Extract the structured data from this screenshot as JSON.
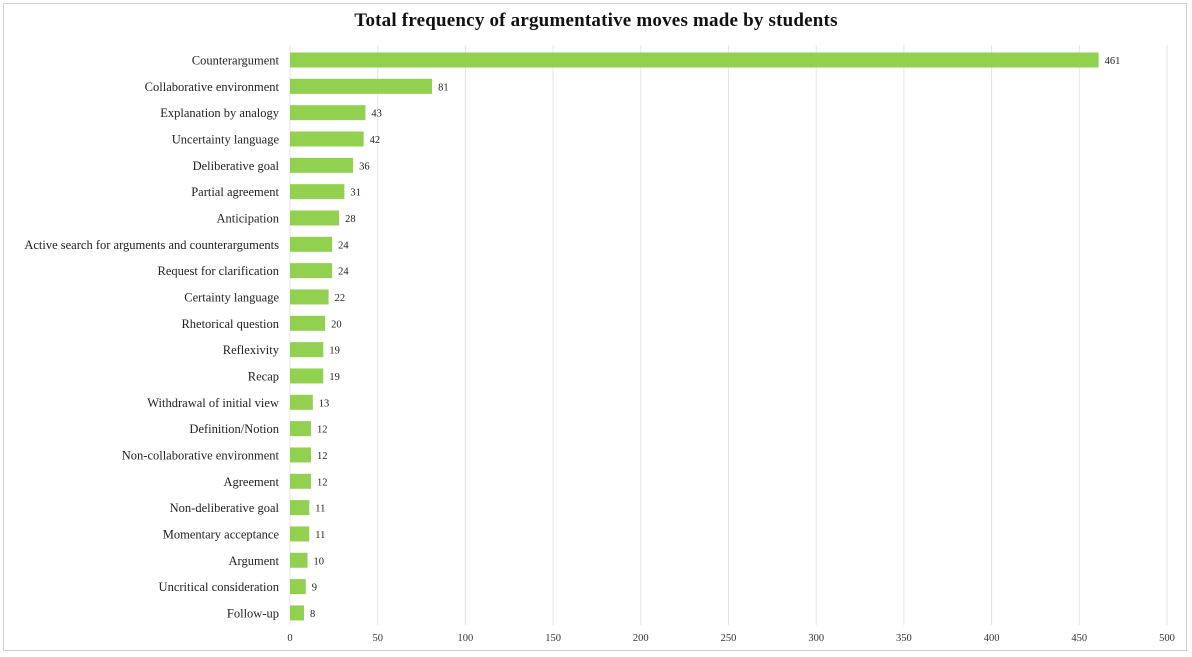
{
  "chart_data": {
    "type": "bar",
    "orientation": "horizontal",
    "title": "Total frequency of  argumentative moves made by students",
    "xlabel": "",
    "ylabel": "",
    "categories": [
      "Counterargument",
      "Collaborative environment",
      "Explanation by analogy",
      "Uncertainty language",
      "Deliberative goal",
      "Partial agreement",
      "Anticipation",
      "Active search for arguments and counterarguments",
      "Request for clarification",
      "Certainty language",
      "Rhetorical question",
      "Reflexivity",
      "Recap",
      "Withdrawal of initial view",
      "Definition/Notion",
      "Non-collaborative environment",
      "Agreement",
      "Non-deliberative goal",
      "Momentary acceptance",
      "Argument",
      "Uncritical consideration",
      "Follow-up"
    ],
    "values": [
      461,
      81,
      43,
      42,
      36,
      31,
      28,
      24,
      24,
      22,
      20,
      19,
      19,
      13,
      12,
      12,
      12,
      11,
      11,
      10,
      9,
      8
    ],
    "xlim": [
      0,
      500
    ],
    "xticks": [
      0,
      50,
      100,
      150,
      200,
      250,
      300,
      350,
      400,
      450,
      500
    ],
    "grid": "vertical",
    "legend": "none",
    "data_labels": true,
    "bar_color": "#92d050"
  }
}
